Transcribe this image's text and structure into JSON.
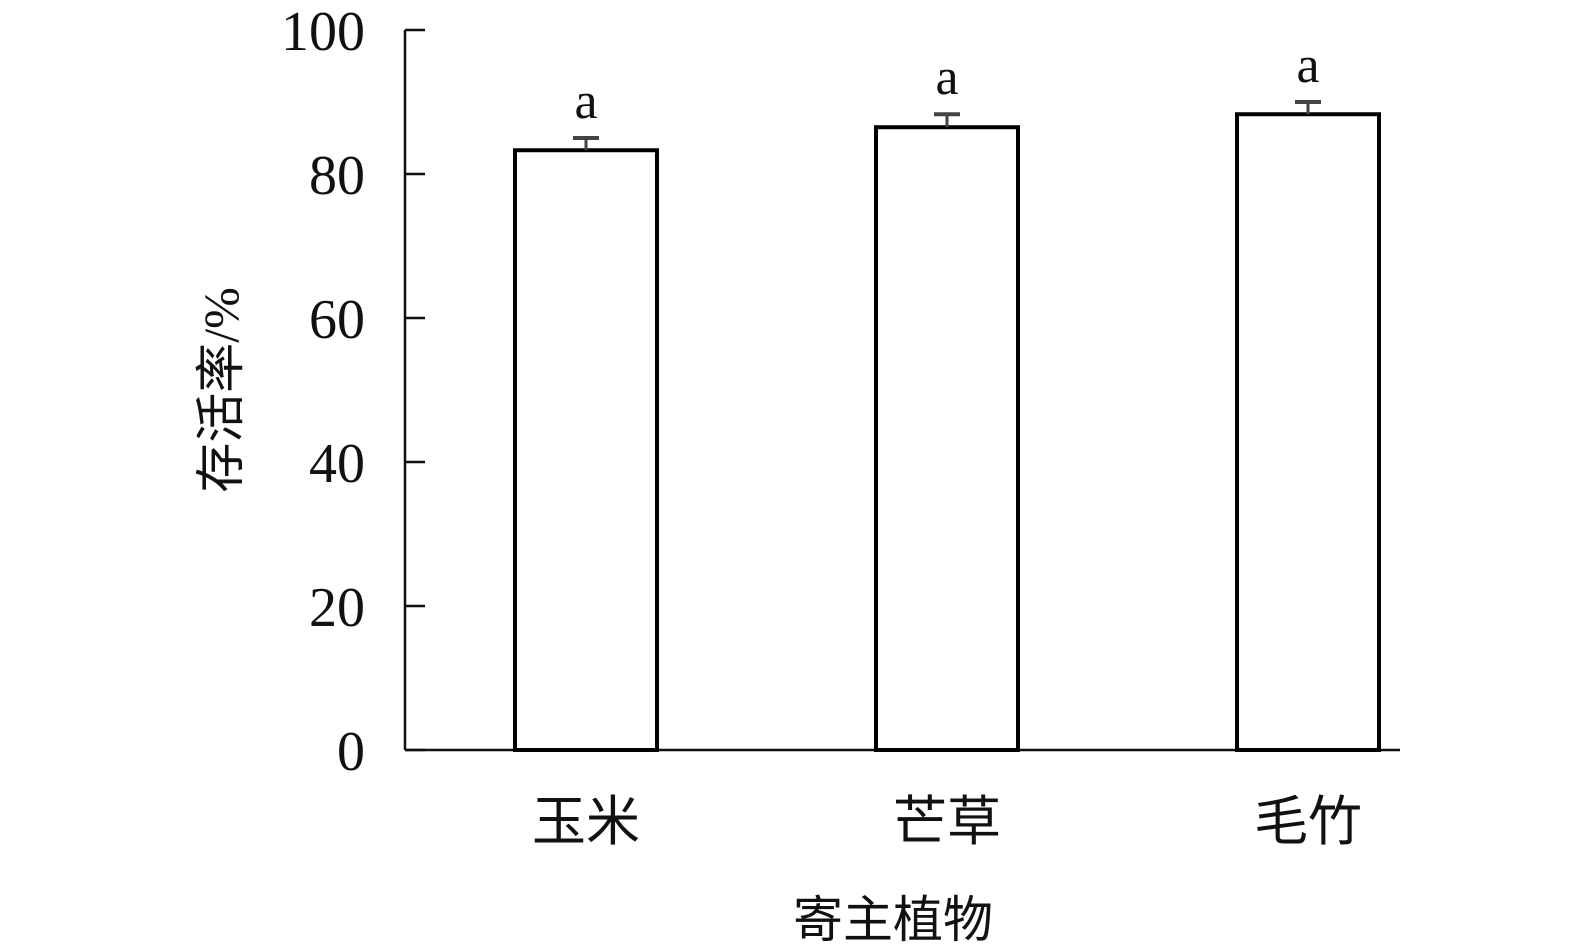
{
  "chart_data": {
    "type": "bar",
    "title": "",
    "xlabel": "寄主植物",
    "ylabel": "存活率/%",
    "categories": [
      "玉米",
      "芒草",
      "毛竹"
    ],
    "values": [
      83.3,
      86.5,
      88.3
    ],
    "error": [
      1.7,
      1.8,
      1.7
    ],
    "significance_labels": [
      "a",
      "a",
      "a"
    ],
    "ylim": [
      0,
      100
    ],
    "yticks": [
      0,
      20,
      40,
      60,
      80,
      100
    ],
    "grid": false,
    "bar_fill": "#ffffff",
    "bar_edge": "#000000",
    "error_color": "#444444"
  }
}
